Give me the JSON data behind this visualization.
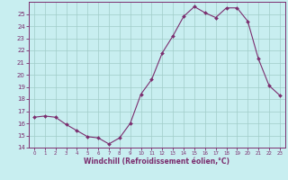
{
  "x": [
    0,
    1,
    2,
    3,
    4,
    5,
    6,
    7,
    8,
    9,
    10,
    11,
    12,
    13,
    14,
    15,
    16,
    17,
    18,
    19,
    20,
    21,
    22,
    23
  ],
  "y": [
    16.5,
    16.6,
    16.5,
    15.9,
    15.4,
    14.9,
    14.8,
    14.3,
    14.8,
    16.0,
    18.4,
    19.6,
    21.8,
    23.2,
    24.8,
    25.6,
    25.1,
    24.7,
    25.5,
    25.5,
    24.4,
    21.3,
    19.1,
    18.3
  ],
  "line_color": "#7B2D6E",
  "marker_color": "#7B2D6E",
  "bg_color": "#c8eef0",
  "grid_color": "#a0ccc8",
  "xlabel": "Windchill (Refroidissement éolien,°C)",
  "xlabel_color": "#7B2D6E",
  "tick_color": "#7B2D6E",
  "spine_color": "#7B2D6E",
  "ylim": [
    14,
    26
  ],
  "xlim": [
    -0.5,
    23.5
  ],
  "yticks": [
    14,
    15,
    16,
    17,
    18,
    19,
    20,
    21,
    22,
    23,
    24,
    25
  ],
  "xticks": [
    0,
    1,
    2,
    3,
    4,
    5,
    6,
    7,
    8,
    9,
    10,
    11,
    12,
    13,
    14,
    15,
    16,
    17,
    18,
    19,
    20,
    21,
    22,
    23
  ]
}
